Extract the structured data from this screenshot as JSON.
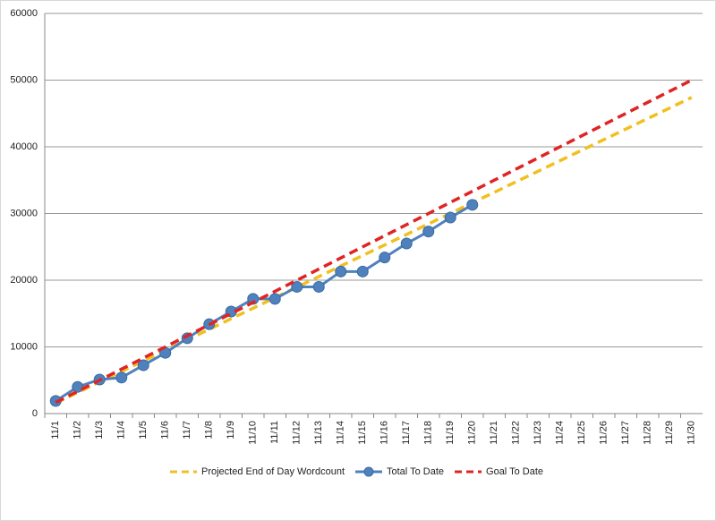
{
  "chart_data": {
    "type": "line",
    "categories": [
      "11/1",
      "11/2",
      "11/3",
      "11/4",
      "11/5",
      "11/6",
      "11/7",
      "11/8",
      "11/9",
      "11/10",
      "11/11",
      "11/12",
      "11/13",
      "11/14",
      "11/15",
      "11/16",
      "11/17",
      "11/18",
      "11/19",
      "11/20",
      "11/21",
      "11/22",
      "11/23",
      "11/24",
      "11/25",
      "11/26",
      "11/27",
      "11/28",
      "11/29",
      "11/30"
    ],
    "series": [
      {
        "name": "Projected End of Day Wordcount",
        "color": "#f0c020",
        "dashed": true,
        "markers": false,
        "values": [
          1580,
          3160,
          4740,
          6320,
          7900,
          9480,
          11060,
          12640,
          14220,
          15800,
          17380,
          18960,
          20540,
          22120,
          23700,
          25280,
          26860,
          28440,
          30020,
          31600,
          33180,
          34760,
          36340,
          37920,
          39500,
          41080,
          42660,
          44240,
          45820,
          47400
        ]
      },
      {
        "name": "Total To Date",
        "color": "#4f81bd",
        "dashed": false,
        "markers": true,
        "values": [
          1900,
          4000,
          5100,
          5400,
          7250,
          9100,
          11300,
          13400,
          15300,
          17200,
          17200,
          19000,
          19000,
          21300,
          21300,
          23400,
          25500,
          27300,
          29400,
          31300,
          null,
          null,
          null,
          null,
          null,
          null,
          null,
          null,
          null,
          null
        ]
      },
      {
        "name": "Goal To Date",
        "color": "#e02424",
        "dashed": true,
        "markers": false,
        "values": [
          1667,
          3333,
          5000,
          6667,
          8333,
          10000,
          11667,
          13333,
          15000,
          16667,
          18333,
          20000,
          21667,
          23333,
          25000,
          26667,
          28333,
          30000,
          31667,
          33333,
          35000,
          36667,
          38333,
          40000,
          41667,
          43333,
          45000,
          46667,
          48333,
          50000
        ]
      }
    ],
    "ylim": [
      0,
      60000
    ],
    "yticks": [
      0,
      10000,
      20000,
      30000,
      40000,
      50000,
      60000
    ],
    "grid": true,
    "legend": "bottom"
  }
}
